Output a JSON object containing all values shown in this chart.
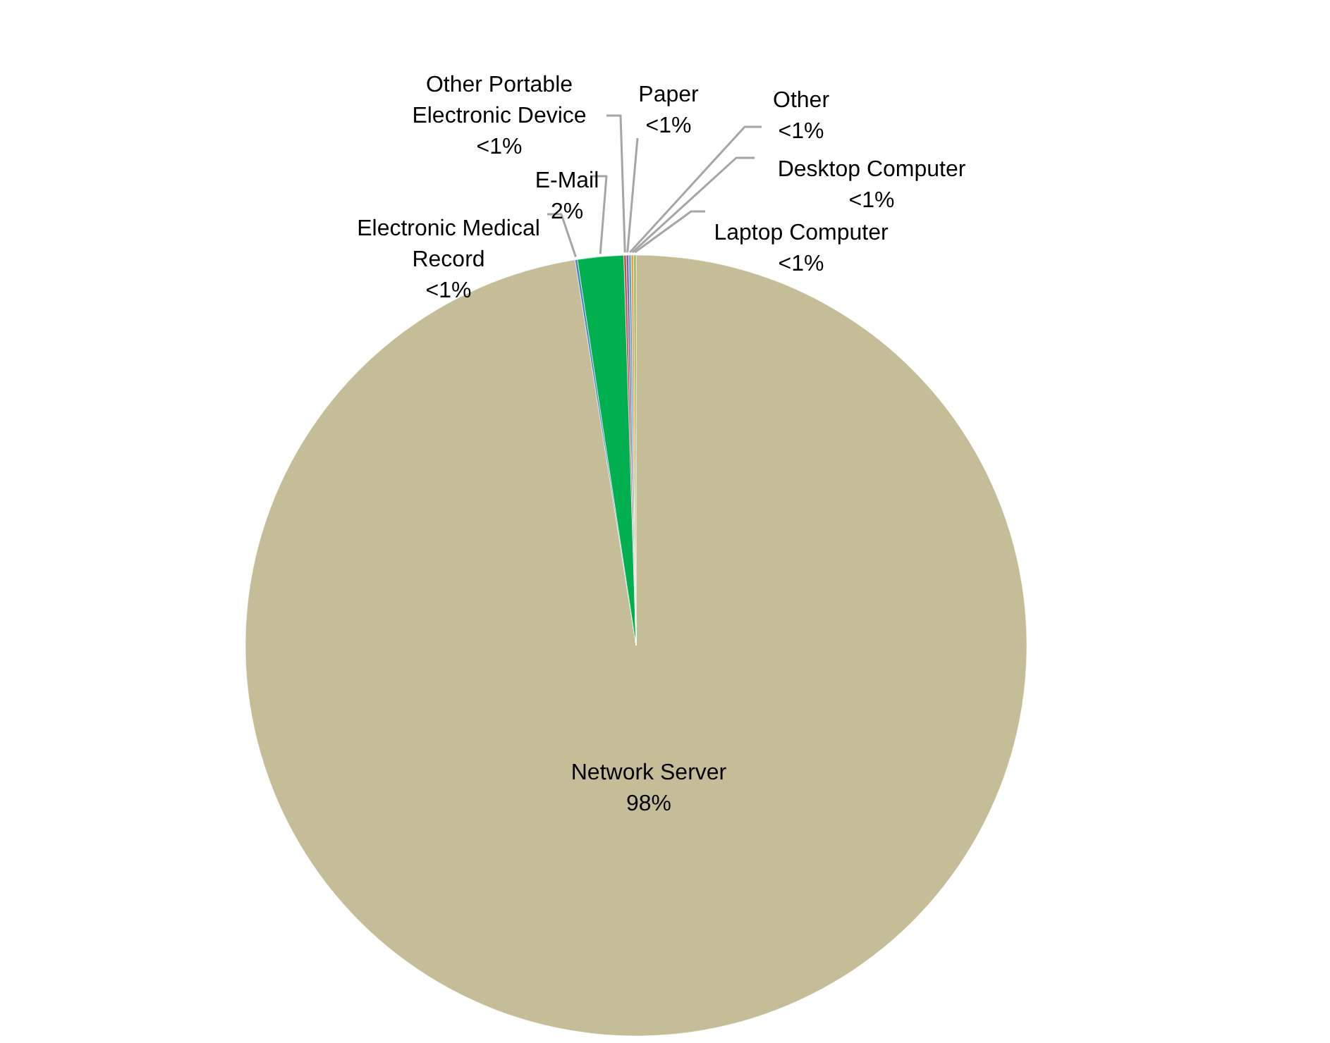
{
  "chart_data": {
    "type": "pie",
    "categories": [
      "Network Server",
      "Electronic Medical Record",
      "E-Mail",
      "Other Portable Electronic Device",
      "Paper",
      "Other",
      "Desktop Computer",
      "Laptop Computer"
    ],
    "values": [
      97.5,
      0.1,
      1.9,
      0.1,
      0.1,
      0.1,
      0.1,
      0.1
    ],
    "colors": [
      "#c4bd97",
      "#4f81bd",
      "#00b050",
      "#c0504d",
      "#8064a2",
      "#4bacc6",
      "#f79646",
      "#9bbb59"
    ],
    "value_labels": [
      "98%",
      "<1%",
      "2%",
      "<1%",
      "<1%",
      "<1%",
      "<1%",
      "<1%"
    ]
  }
}
